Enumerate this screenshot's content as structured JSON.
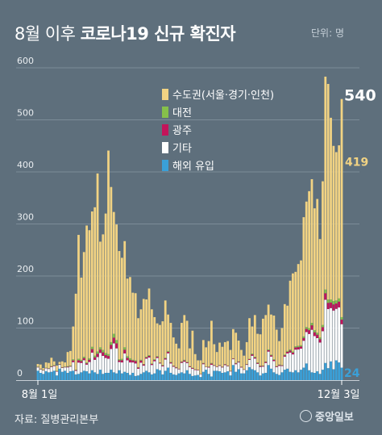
{
  "header": {
    "title_light": "8월 이후",
    "title_bold": "코로나19 신규 확진자",
    "unit": "단위: 명"
  },
  "footer": {
    "source": "자료: 질병관리본부",
    "logo": "중앙일보"
  },
  "chart_data": {
    "type": "bar",
    "stacked": true,
    "title": "8월 이후 코로나19 신규 확진자",
    "ylim": [
      0,
      600
    ],
    "yticks": [
      0,
      100,
      200,
      300,
      400,
      500,
      600
    ],
    "grid": true,
    "legend_position": "top-right",
    "x_start_label": "8월 1일",
    "x_end_label": "12월 3일",
    "series": [
      {
        "name": "수도권(서울·경기·인천)",
        "color": "#f2d383"
      },
      {
        "name": "대전",
        "color": "#86c04a"
      },
      {
        "name": "광주",
        "color": "#c3145a"
      },
      {
        "name": "기타",
        "color": "#ffffff"
      },
      {
        "name": "해외 유입",
        "color": "#3aa0d8"
      }
    ],
    "annotations": [
      {
        "text": "540",
        "value": 540,
        "series": "total"
      },
      {
        "text": "419",
        "value": 419,
        "series": "수도권(서울·경기·인천)"
      },
      {
        "text": "24",
        "value": 24,
        "series": "해외 유입"
      }
    ],
    "daily_totals": [
      31,
      30,
      23,
      34,
      33,
      43,
      36,
      28,
      35,
      36,
      34,
      54,
      56,
      103,
      166,
      279,
      197,
      246,
      297,
      288,
      324,
      332,
      397,
      266,
      280,
      320,
      441,
      371,
      323,
      299,
      248,
      235,
      267,
      195,
      198,
      168,
      167,
      119,
      136,
      156,
      155,
      176,
      136,
      121,
      109,
      106,
      113,
      153,
      126,
      110,
      82,
      70,
      61,
      110,
      125,
      114,
      61,
      95,
      50,
      38,
      38,
      77,
      63,
      75,
      114,
      69,
      54,
      72,
      64,
      73,
      75,
      58,
      98,
      91,
      76,
      58,
      47,
      73,
      119,
      103,
      125,
      89,
      88,
      118,
      125,
      145,
      126,
      124,
      97,
      75,
      100,
      146,
      143,
      191,
      205,
      208,
      223,
      230,
      313,
      343,
      363,
      386,
      330,
      348,
      271,
      382,
      583,
      569,
      504,
      450,
      438,
      451,
      540
    ],
    "daily_overseas": [
      18,
      14,
      12,
      17,
      15,
      16,
      18,
      9,
      22,
      16,
      18,
      14,
      17,
      18,
      11,
      12,
      15,
      18,
      17,
      13,
      19,
      15,
      12,
      20,
      12,
      14,
      14,
      20,
      15,
      13,
      19,
      13,
      16,
      14,
      10,
      14,
      8,
      9,
      12,
      15,
      18,
      15,
      11,
      13,
      21,
      19,
      11,
      18,
      24,
      14,
      11,
      10,
      13,
      15,
      13,
      19,
      12,
      8,
      9,
      10,
      6,
      16,
      20,
      12,
      7,
      18,
      18,
      17,
      14,
      15,
      17,
      9,
      29,
      16,
      21,
      13,
      13,
      19,
      25,
      21,
      19,
      15,
      9,
      13,
      14,
      29,
      22,
      15,
      12,
      10,
      15,
      20,
      22,
      16,
      15,
      19,
      15,
      20,
      24,
      32,
      19,
      15,
      14,
      17,
      12,
      20,
      33,
      23,
      36,
      21,
      38,
      34,
      24
    ],
    "daily_capital": [
      5,
      8,
      3,
      10,
      10,
      16,
      7,
      10,
      4,
      11,
      8,
      27,
      28,
      63,
      146,
      238,
      158,
      201,
      263,
      246,
      260,
      285,
      342,
      203,
      222,
      268,
      391,
      298,
      234,
      222,
      208,
      194,
      204,
      149,
      156,
      129,
      129,
      94,
      97,
      125,
      110,
      128,
      104,
      81,
      63,
      72,
      84,
      110,
      70,
      75,
      54,
      45,
      39,
      74,
      86,
      79,
      34,
      71,
      29,
      18,
      26,
      44,
      37,
      49,
      81,
      40,
      28,
      43,
      38,
      42,
      47,
      40,
      56,
      58,
      40,
      32,
      26,
      42,
      78,
      52,
      80,
      55,
      60,
      90,
      89,
      86,
      77,
      84,
      70,
      45,
      71,
      97,
      87,
      132,
      150,
      143,
      157,
      163,
      229,
      241,
      263,
      276,
      234,
      257,
      189,
      276,
      409,
      414,
      349,
      298,
      285,
      294,
      419
    ]
  }
}
